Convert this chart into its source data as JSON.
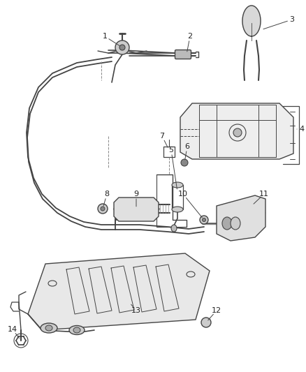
{
  "bg_color": "#ffffff",
  "line_color": "#444444",
  "line_width": 1.0,
  "label_fontsize": 8.0,
  "label_color": "#222222"
}
